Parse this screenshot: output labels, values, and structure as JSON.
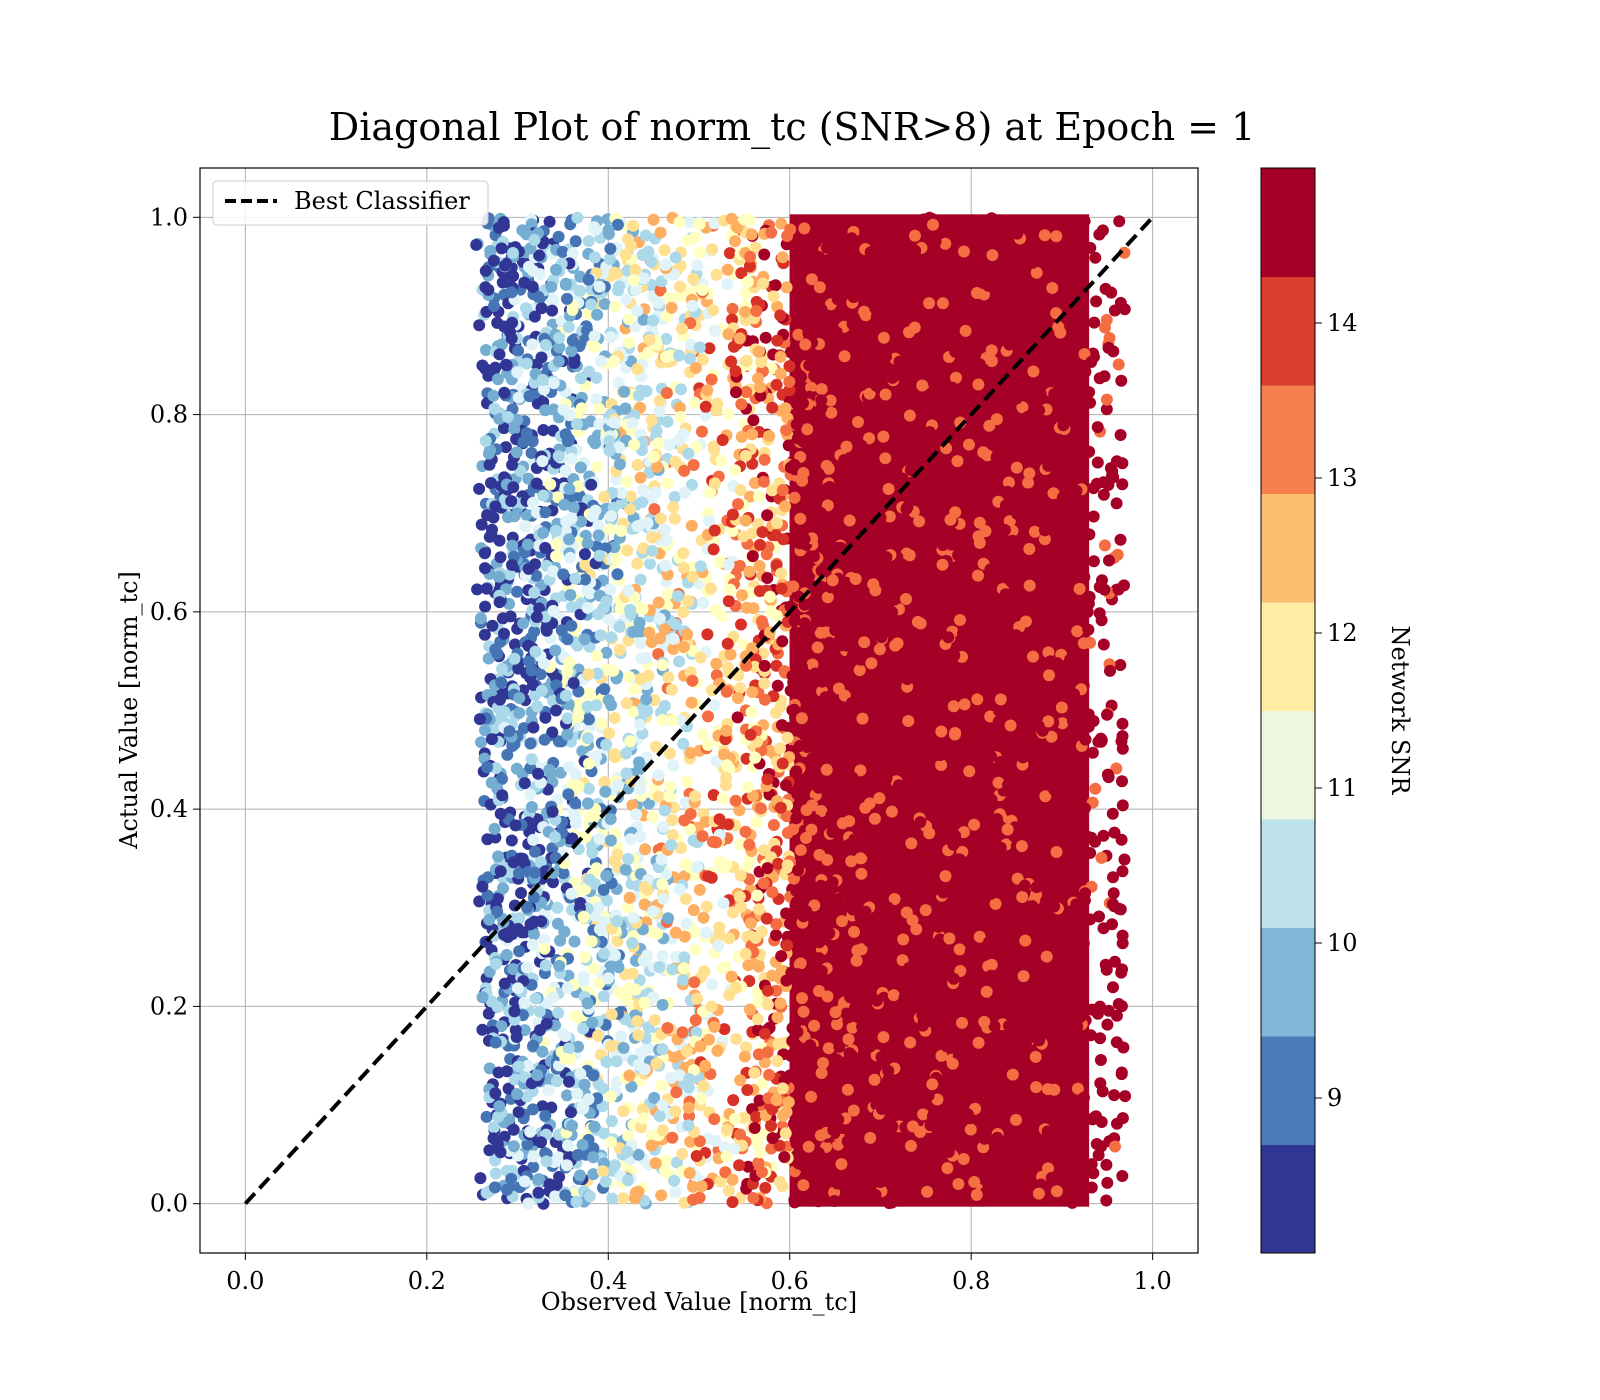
{
  "chart_data": {
    "type": "scatter",
    "title": "Diagonal Plot of norm_tc (SNR>8) at Epoch = 1",
    "xlabel": "Observed Value [norm_tc]",
    "ylabel": "Actual Value [norm_tc]",
    "xlim": [
      -0.05,
      1.05
    ],
    "ylim": [
      -0.05,
      1.05
    ],
    "xticks": [
      "0.0",
      "0.2",
      "0.4",
      "0.6",
      "0.8",
      "1.0"
    ],
    "yticks": [
      "0.0",
      "0.2",
      "0.4",
      "0.6",
      "0.8",
      "1.0"
    ],
    "grid": true,
    "legend": {
      "position": "upper-left",
      "entries": [
        "Best Classifier"
      ]
    },
    "reference_line": {
      "name": "Best Classifier",
      "style": "dashed",
      "color": "#000000",
      "points": [
        [
          0.0,
          0.0
        ],
        [
          1.0,
          1.0
        ]
      ]
    },
    "colorbar": {
      "label": "Network SNR",
      "range": [
        8,
        15
      ],
      "ticks": [
        "9",
        "10",
        "11",
        "12",
        "13",
        "14"
      ],
      "colors": [
        "#313695",
        "#4575b4",
        "#74add1",
        "#abd9e9",
        "#e0f3f8",
        "#ffffbf",
        "#fee090",
        "#fdae61",
        "#f46d43",
        "#d73027",
        "#a50026"
      ],
      "bands": [
        {
          "min": 8.0,
          "max": 8.7,
          "color": "#313695"
        },
        {
          "min": 8.7,
          "max": 9.4,
          "color": "#4a7ab8"
        },
        {
          "min": 9.4,
          "max": 10.1,
          "color": "#82b6d7"
        },
        {
          "min": 10.1,
          "max": 10.8,
          "color": "#bde2ec"
        },
        {
          "min": 10.8,
          "max": 11.5,
          "color": "#edf7e0"
        },
        {
          "min": 11.5,
          "max": 12.2,
          "color": "#feeda2"
        },
        {
          "min": 12.2,
          "max": 12.9,
          "color": "#fdbe70"
        },
        {
          "min": 12.9,
          "max": 13.6,
          "color": "#f5804e"
        },
        {
          "min": 13.6,
          "max": 14.3,
          "color": "#d93d2b"
        },
        {
          "min": 14.3,
          "max": 15.0,
          "color": "#a50026"
        }
      ]
    },
    "scatter_summary": {
      "x_range": [
        0.25,
        0.98
      ],
      "y_range": [
        0.0,
        1.0
      ],
      "dense_high_snr_region_x": [
        0.6,
        0.93
      ],
      "high_snr_color": "#a50026"
    }
  }
}
